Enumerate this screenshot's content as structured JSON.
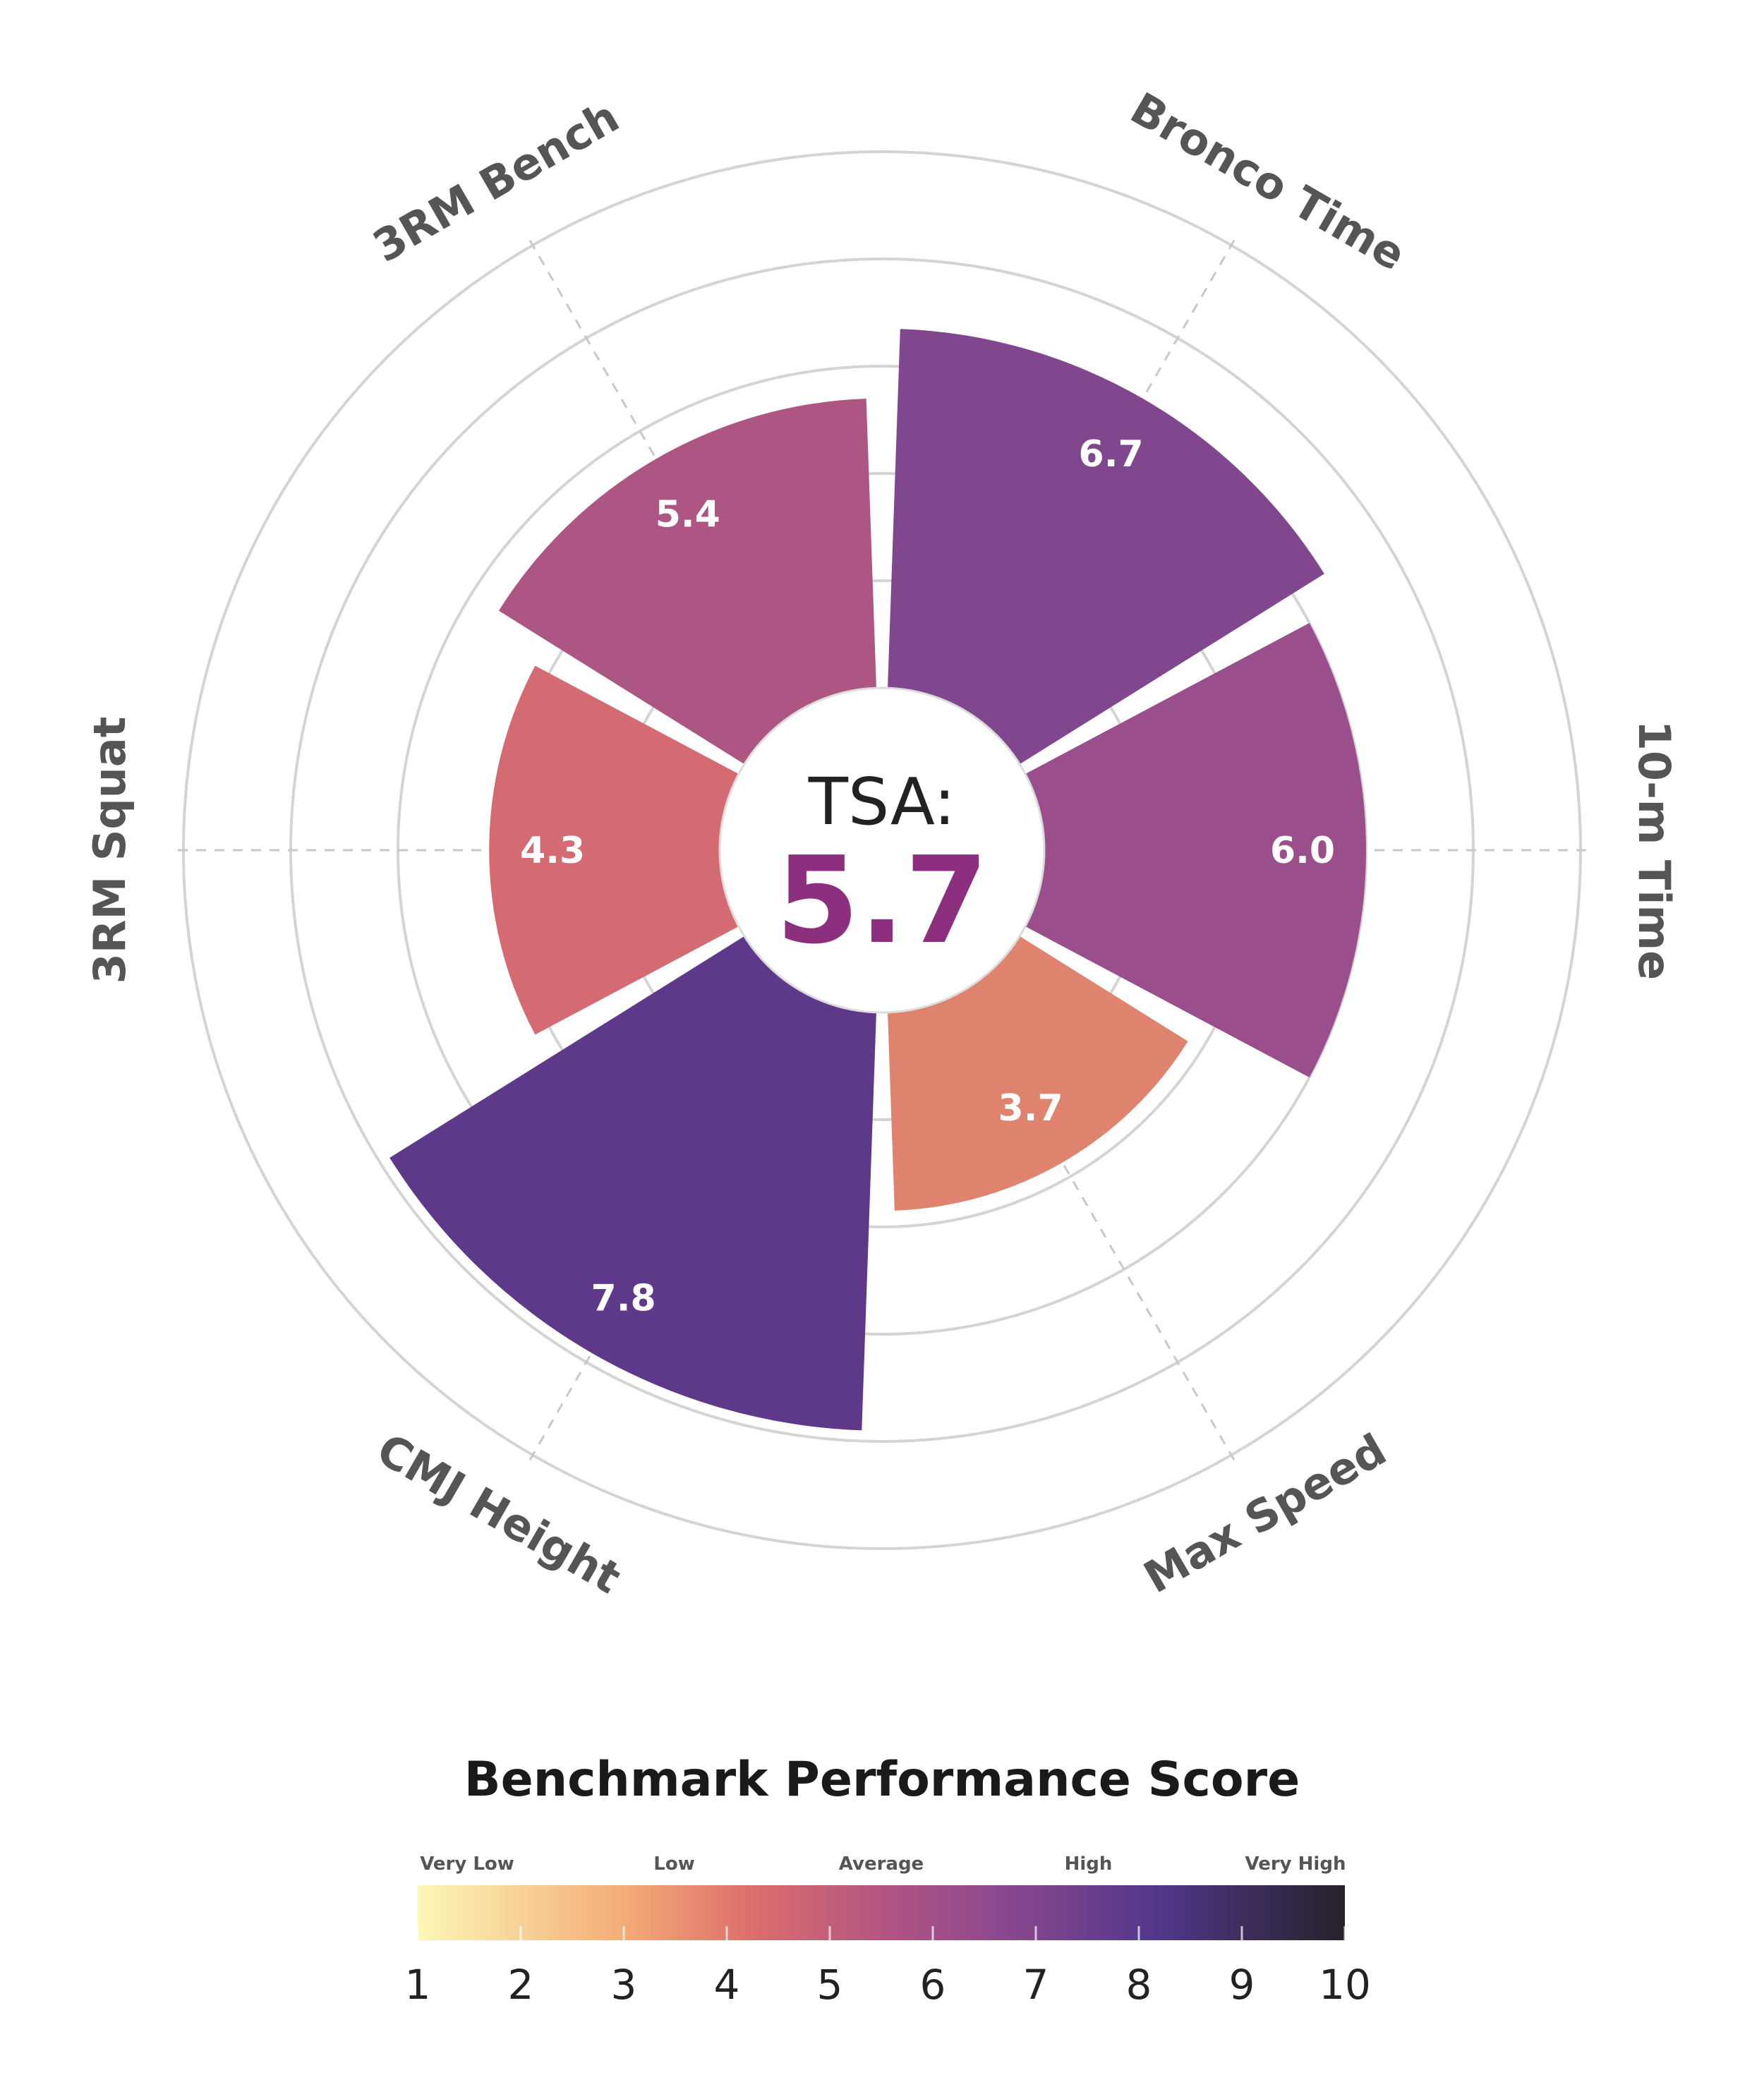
{
  "chart_data": {
    "type": "polar-bar",
    "scale": [
      0,
      10
    ],
    "rings": [
      2,
      4,
      6,
      8,
      10
    ],
    "categories": [
      "Bronco Time",
      "10-m Time",
      "Max Speed",
      "CMJ Height",
      "3RM Squat",
      "3RM Bench"
    ],
    "values": [
      6.7,
      6.0,
      3.7,
      7.8,
      4.3,
      5.4
    ],
    "value_labels": [
      "6.7",
      "6.0",
      "3.7",
      "7.8",
      "4.3",
      "5.4"
    ],
    "center": {
      "title": "TSA:",
      "score": "5.7",
      "score_color": "#8b2f7e"
    },
    "colorbar": {
      "title": "Benchmark Performance Score",
      "categories": [
        "Very Low",
        "Low",
        "Average",
        "High",
        "Very High"
      ],
      "ticks": [
        "1",
        "2",
        "3",
        "4",
        "5",
        "6",
        "7",
        "8",
        "9",
        "10"
      ],
      "range": [
        1,
        10
      ],
      "colormap": [
        "#fcfdbf",
        "#feb078",
        "#f1605d",
        "#b73779",
        "#721f81",
        "#2c115f",
        "#000004"
      ]
    }
  }
}
